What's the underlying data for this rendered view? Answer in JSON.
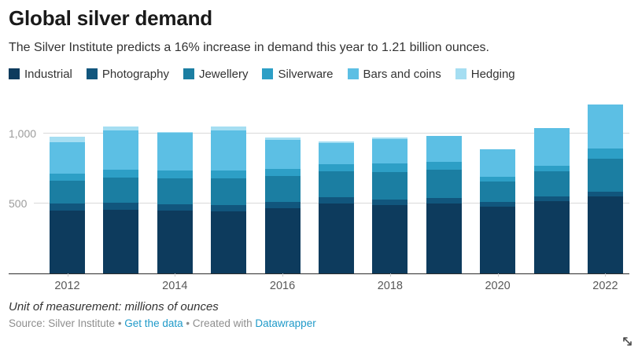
{
  "header": {
    "title": "Global silver demand",
    "subtitle": "The Silver Institute predicts a 16% increase in demand this year to 1.21 billion ounces."
  },
  "chart_data": {
    "type": "bar",
    "stacked": true,
    "title": "Global silver demand",
    "unit": "millions of ounces",
    "categories": [
      "2012",
      "2013",
      "2014",
      "2015",
      "2016",
      "2017",
      "2018",
      "2019",
      "2020",
      "2021",
      "2022"
    ],
    "series": [
      {
        "name": "Industrial",
        "color": "#0d3b5d",
        "values": [
          450,
          455,
          445,
          440,
          465,
          500,
          485,
          500,
          475,
          515,
          550
        ]
      },
      {
        "name": "Photography",
        "color": "#11567d",
        "values": [
          50,
          50,
          48,
          46,
          44,
          42,
          40,
          38,
          32,
          32,
          32
        ]
      },
      {
        "name": "Jewellery",
        "color": "#1b7ea2",
        "values": [
          160,
          180,
          185,
          190,
          185,
          185,
          200,
          200,
          150,
          180,
          235
        ]
      },
      {
        "name": "Silverware",
        "color": "#2d9fc6",
        "values": [
          50,
          55,
          55,
          57,
          52,
          55,
          60,
          60,
          32,
          40,
          73
        ]
      },
      {
        "name": "Bars and coins",
        "color": "#5cbfe4",
        "values": [
          230,
          280,
          270,
          290,
          210,
          150,
          175,
          185,
          200,
          275,
          320
        ]
      },
      {
        "name": "Hedging",
        "color": "#a5def2",
        "values": [
          35,
          30,
          10,
          25,
          15,
          10,
          10,
          0,
          0,
          0,
          0
        ]
      }
    ],
    "totals": [
      975,
      1050,
      1013,
      1048,
      971,
      942,
      970,
      983,
      889,
      1042,
      1210
    ],
    "ylim": [
      0,
      1250
    ],
    "yticks": [
      500,
      1000
    ],
    "ytick_labels": [
      "500",
      "1,000"
    ],
    "xtick_every": 2,
    "grid": "horizontal",
    "legend_position": "top"
  },
  "footer": {
    "note": "Unit of measurement: millions of ounces",
    "source_text": "Source: Silver Institute",
    "sep": " • ",
    "get_data_label": "Get the data",
    "created_with": "Created with",
    "datawrapper_label": "Datawrapper"
  },
  "colors": {
    "link_blue": "#1f9ac9",
    "gridline": "#d9d9d9",
    "baseline": "#2e2e2e",
    "y_axis_label": "#9c9c9c",
    "x_axis_label": "#595959"
  }
}
